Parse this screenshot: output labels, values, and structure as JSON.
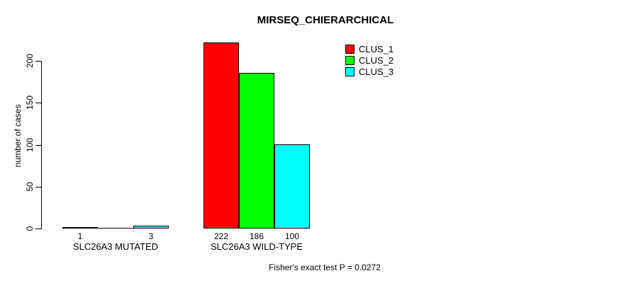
{
  "chart_data": {
    "type": "bar",
    "title": "MIRSEQ_CHIERARCHICAL",
    "ylabel": "number of cases",
    "xlabel": "",
    "yticks": [
      0,
      50,
      100,
      150,
      200
    ],
    "ylim": [
      0,
      222
    ],
    "grid": false,
    "legend_position": "top-right-inside",
    "categories": [
      "SLC26A3 MUTATED",
      "SLC26A3 WILD-TYPE"
    ],
    "series": [
      {
        "name": "CLUS_1",
        "color": "#ff0000",
        "values": [
          1,
          222
        ]
      },
      {
        "name": "CLUS_2",
        "color": "#00ff00",
        "values": [
          0,
          186
        ]
      },
      {
        "name": "CLUS_3",
        "color": "#00ffff",
        "values": [
          3,
          100
        ]
      }
    ],
    "bar_value_labels": [
      [
        "1",
        "",
        "3"
      ],
      [
        "222",
        "186",
        "100"
      ]
    ],
    "annotation": "Fisher's exact test P = 0.0272",
    "colors": {
      "background": "#ffffff",
      "axis": "#000000",
      "bar_border": "#000000",
      "clus_1": "#ff0000",
      "clus_2": "#00ff00",
      "clus_3": "#00ffff"
    }
  }
}
